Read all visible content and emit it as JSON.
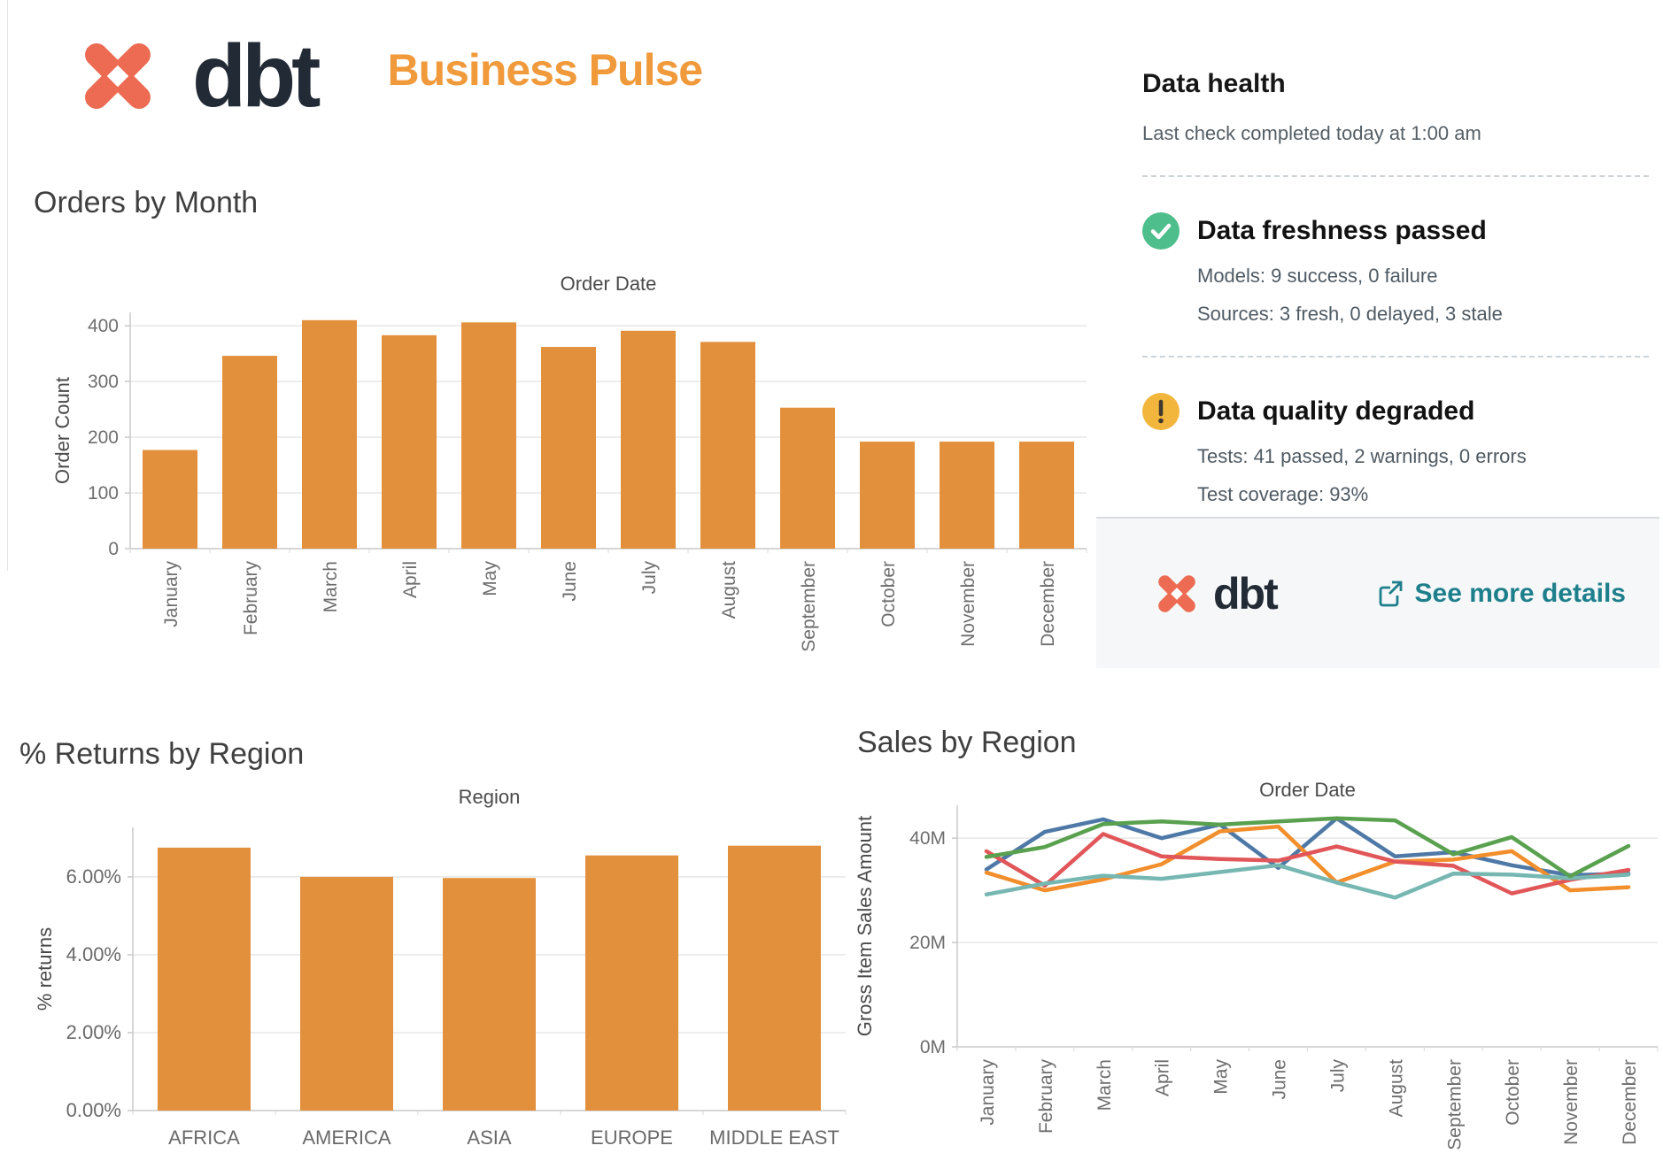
{
  "header": {
    "brand": "dbt",
    "title": "Business Pulse",
    "brand_color": "#EC6B52",
    "brand_text_color": "#222A35",
    "title_color": "#F09A3B"
  },
  "data_health": {
    "title": "Data health",
    "subtitle": "Last check completed today at 1:00 am",
    "items": [
      {
        "icon": "check-circle-icon",
        "icon_color": "#4EBE8C",
        "title": "Data freshness passed",
        "lines": [
          "Models: 9 success, 0 failure",
          "Sources: 3 fresh, 0 delayed, 3 stale"
        ]
      },
      {
        "icon": "warning-circle-icon",
        "icon_color": "#F2B63C",
        "title": "Data quality degraded",
        "lines": [
          "Tests: 41 passed, 2 warnings, 0 errors",
          "Test coverage: 93%"
        ]
      }
    ],
    "footer": {
      "brand": "dbt",
      "link_label": "See more details",
      "link_color": "#1E7F8C"
    }
  },
  "chart_data": [
    {
      "id": "orders_by_month",
      "type": "bar",
      "title": "Orders by Month",
      "axis_title": "Order Date",
      "ylabel": "Order Count",
      "categories": [
        "January",
        "February",
        "March",
        "April",
        "May",
        "June",
        "July",
        "August",
        "September",
        "October",
        "November",
        "December"
      ],
      "values": [
        177,
        346,
        410,
        383,
        406,
        362,
        391,
        371,
        253,
        192,
        192,
        192
      ],
      "yticks": [
        0,
        100,
        200,
        300,
        400
      ],
      "ytick_labels": [
        "0",
        "100",
        "200",
        "300",
        "400"
      ],
      "ylim": [
        0,
        424
      ],
      "bar_color": "#E2903C",
      "grid": true,
      "legend": "none"
    },
    {
      "id": "returns_by_region",
      "type": "bar",
      "title": "% Returns by Region",
      "axis_title": "Region",
      "ylabel": "% returns",
      "categories": [
        "AFRICA",
        "AMERICA",
        "ASIA",
        "EUROPE",
        "MIDDLE EAST"
      ],
      "values": [
        6.75,
        6.0,
        5.97,
        6.55,
        6.8
      ],
      "yticks": [
        0,
        2,
        4,
        6
      ],
      "ytick_labels": [
        "0.00%",
        "2.00%",
        "4.00%",
        "6.00%"
      ],
      "ylim": [
        0,
        7.27
      ],
      "bar_color": "#E2903C",
      "grid": true,
      "legend": "none"
    },
    {
      "id": "sales_by_region",
      "type": "line",
      "title": "Sales by Region",
      "axis_title": "Order Date",
      "ylabel": "Gross Item Sales Amount",
      "categories": [
        "January",
        "February",
        "March",
        "April",
        "May",
        "June",
        "July",
        "August",
        "September",
        "October",
        "November",
        "December"
      ],
      "series": [
        {
          "name": "blue",
          "color": "#4E79A7",
          "values": [
            34.0,
            41.2,
            43.6,
            40.0,
            42.6,
            34.3,
            43.8,
            36.5,
            37.3,
            34.8,
            32.9,
            33.2
          ]
        },
        {
          "name": "orange",
          "color": "#F28E2B",
          "values": [
            33.4,
            30.0,
            32.1,
            35.0,
            41.3,
            42.2,
            31.5,
            35.5,
            35.9,
            37.5,
            30.0,
            30.6
          ]
        },
        {
          "name": "red",
          "color": "#E15759",
          "values": [
            37.5,
            30.9,
            40.8,
            36.5,
            36.0,
            35.7,
            38.4,
            35.5,
            34.7,
            29.4,
            32.0,
            33.9
          ]
        },
        {
          "name": "teal",
          "color": "#76B7B2",
          "values": [
            29.2,
            31.3,
            32.8,
            32.2,
            33.5,
            34.8,
            31.5,
            28.6,
            33.2,
            33.0,
            32.3,
            33.0
          ]
        },
        {
          "name": "green",
          "color": "#59A14F",
          "values": [
            36.4,
            38.3,
            42.7,
            43.2,
            42.6,
            43.2,
            43.8,
            43.4,
            36.9,
            40.2,
            32.7,
            38.5
          ]
        }
      ],
      "yticks": [
        0,
        20,
        40
      ],
      "ytick_labels": [
        "0M",
        "20M",
        "40M"
      ],
      "ylim": [
        0,
        46.3
      ],
      "unit": "M",
      "grid": true,
      "legend": "none"
    }
  ]
}
